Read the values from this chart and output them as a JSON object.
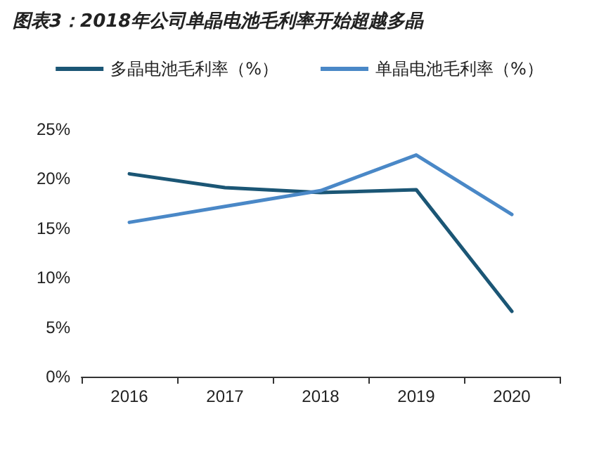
{
  "chart_data": {
    "type": "line",
    "title": "图表3：2018年公司单晶电池毛利率开始超越多晶",
    "categories": [
      "2016",
      "2017",
      "2018",
      "2019",
      "2020"
    ],
    "series": [
      {
        "name": "多晶电池毛利率（%）",
        "color": "#1b5675",
        "values": [
          20.5,
          19.1,
          18.6,
          18.9,
          6.6
        ]
      },
      {
        "name": "单晶电池毛利率（%）",
        "color": "#4a88c7",
        "values": [
          15.6,
          17.2,
          18.8,
          22.4,
          16.4
        ]
      }
    ],
    "ylim": [
      0,
      25
    ],
    "yticks": [
      {
        "value": 0,
        "label": "0%"
      },
      {
        "value": 5,
        "label": "5%"
      },
      {
        "value": 10,
        "label": "10%"
      },
      {
        "value": 15,
        "label": "15%"
      },
      {
        "value": 20,
        "label": "20%"
      },
      {
        "value": 25,
        "label": "25%"
      }
    ],
    "grid": false,
    "legend": "top",
    "marker": "none",
    "line_style": "solid"
  }
}
